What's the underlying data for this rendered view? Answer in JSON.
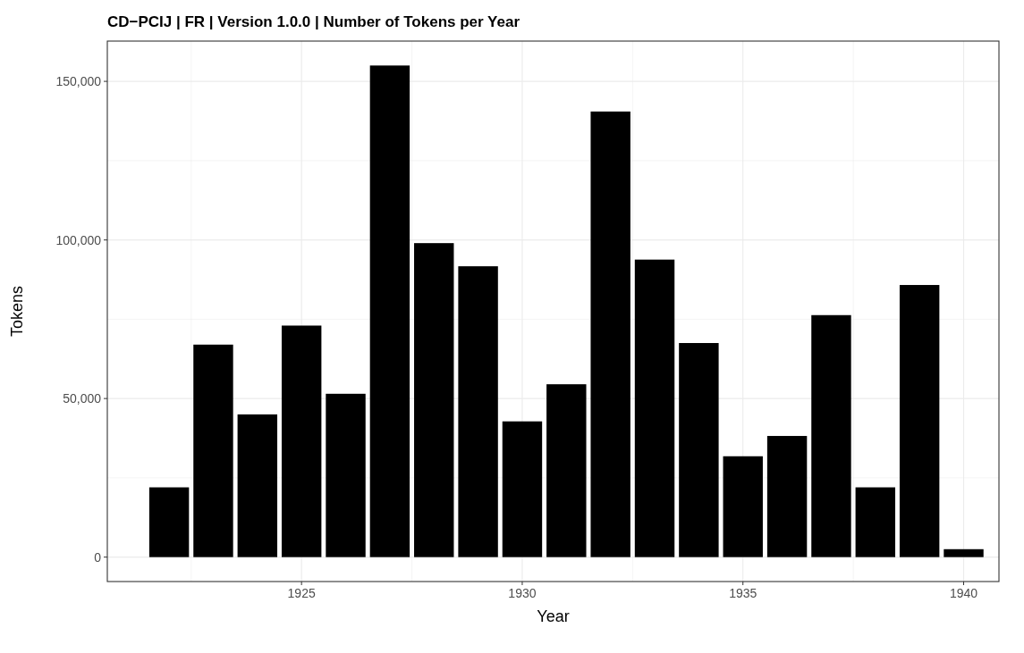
{
  "chart_data": {
    "type": "bar",
    "title": "CD−PCIJ | FR | Version 1.0.0 | Number of Tokens per Year",
    "xlabel": "Year",
    "ylabel": "Tokens",
    "x": [
      1922,
      1923,
      1924,
      1925,
      1926,
      1927,
      1928,
      1929,
      1930,
      1931,
      1932,
      1933,
      1934,
      1935,
      1936,
      1937,
      1938,
      1939,
      1940
    ],
    "values": [
      22000,
      67000,
      45000,
      73000,
      51500,
      155000,
      99000,
      91700,
      42800,
      54500,
      140500,
      93800,
      67500,
      31800,
      38200,
      76300,
      22000,
      85800,
      2500
    ],
    "color": "#000000",
    "xlim": [
      1920.6,
      1940.8
    ],
    "xticks": [
      1925,
      1930,
      1935,
      1940
    ],
    "ylim": [
      -7700,
      162700
    ],
    "yticks": [
      {
        "value": 0,
        "label": "0"
      },
      {
        "value": 50000,
        "label": "50,000"
      },
      {
        "value": 100000,
        "label": "100,000"
      },
      {
        "value": 150000,
        "label": "150,000"
      }
    ],
    "grid": true
  }
}
